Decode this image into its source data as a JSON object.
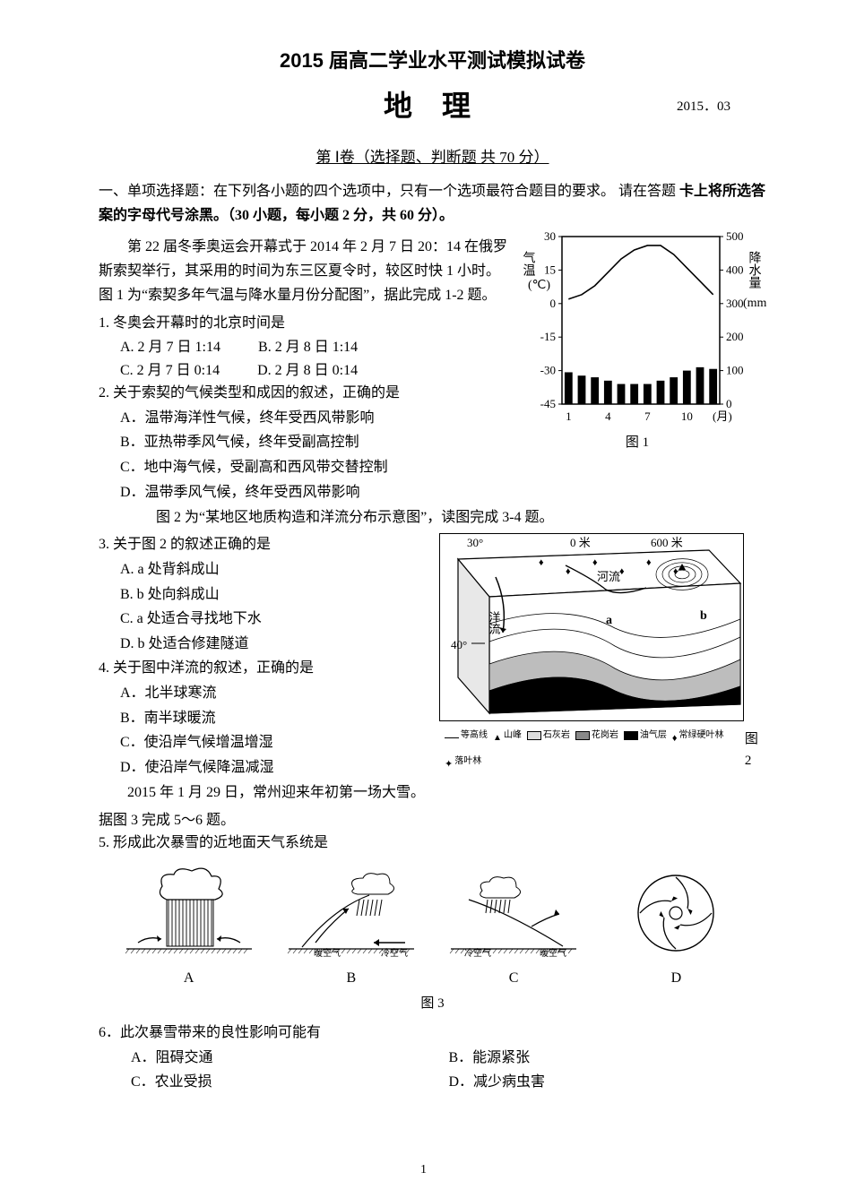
{
  "title_main": "2015 届高二学业水平测试模拟试卷",
  "title_subject": "地 理",
  "title_date": "2015．03",
  "section_header": "第 Ⅰ卷（选择题、判断题  共 70 分）",
  "instruct_line1": "一、单项选择题：在下列各小题的四个选项中，只有一个选项最符合题目的要求。 请在答题",
  "instruct_line2": "卡上将所选答案的字母代号涂黑。（30 小题，每小题 2 分，共 60 分）。",
  "passage1": "第 22 届冬季奥运会开幕式于 2014 年 2 月 7 日 20：14 在俄罗斯索契举行，其采用的时间为东三区夏令时，较区时快 1 小时。图 1 为“索契多年气温与降水量月份分配图”，据此完成 1-2 题。",
  "q1": {
    "stem": "1. 冬奥会开幕时的北京时间是",
    "A": "A. 2 月 7 日 1:14",
    "B": "B. 2 月 8 日 1:14",
    "C": "C. 2 月 7 日 0:14",
    "D": "D. 2 月 8 日 0:14"
  },
  "q2": {
    "stem": "2. 关于索契的气候类型和成因的叙述，正确的是",
    "A": "A．温带海洋性气候，终年受西风带影响",
    "B": "B．亚热带季风气候，终年受副高控制",
    "C": "C．地中海气候，受副高和西风带交替控制",
    "D": "D．温带季风气候，终年受西风带影响"
  },
  "passage2": "图 2 为“某地区地质构造和洋流分布示意图”，读图完成 3-4 题。",
  "q3": {
    "stem": "3. 关于图 2 的叙述正确的是",
    "A": "A. a 处背斜成山",
    "B": "B. b 处向斜成山",
    "C": "C. a 处适合寻找地下水",
    "D": "D. b 处适合修建隧道"
  },
  "q4": {
    "stem": "4. 关于图中洋流的叙述，正确的是",
    "A": "A．北半球寒流",
    "B": "B．南半球暖流",
    "C": "C．使沿岸气候增温增湿",
    "D": "D．使沿岸气候降温减湿"
  },
  "passage3a": "2015 年 1 月 29 日，常州迎来年初第一场大雪。",
  "passage3b": "据图 3 完成 5～6 题。",
  "q5": {
    "stem": "5. 形成此次暴雪的近地面天气系统是"
  },
  "q6": {
    "stem": "6．此次暴雪带来的良性影响可能有",
    "A": "A．阻碍交通",
    "B": "B．能源紧张",
    "C": "C．农业受损",
    "D": "D．减少病虫害"
  },
  "fig1": {
    "caption": "图 1",
    "left_axis_label": "气温(℃)",
    "right_axis_label": "降水量(mm)",
    "x_label": "(月)",
    "temp_ticks": [
      30,
      15,
      0,
      -15,
      -30,
      -45
    ],
    "precip_ticks": [
      500,
      400,
      300,
      200,
      100,
      0
    ],
    "x_ticks": [
      1,
      4,
      7,
      10
    ],
    "precip_values": [
      95,
      85,
      80,
      70,
      60,
      60,
      60,
      70,
      80,
      100,
      110,
      105
    ],
    "temp_values": [
      2,
      4,
      8,
      14,
      20,
      24,
      26,
      26,
      22,
      16,
      10,
      4
    ],
    "bar_color": "#000000",
    "line_color": "#000000",
    "xlim": [
      0.5,
      12.5
    ],
    "temp_ylim": [
      -45,
      30
    ],
    "precip_ylim": [
      0,
      500
    ],
    "background": "#ffffff",
    "axis_color": "#000000",
    "tick_fontsize": 13
  },
  "fig2": {
    "caption": "图 2",
    "lat_labels": [
      "30°",
      "40°"
    ],
    "depth_labels": [
      "0 米",
      "600 米"
    ],
    "features": [
      "洋流",
      "河流",
      "a",
      "b"
    ],
    "legend": [
      {
        "name": "等高线",
        "swatch": "line"
      },
      {
        "name": "山峰",
        "swatch": "triangle"
      },
      {
        "name": "石灰岩",
        "swatch": "#dcdcdc"
      },
      {
        "name": "花岗岩",
        "swatch": "#888888"
      },
      {
        "name": "油气层",
        "swatch": "#000000"
      },
      {
        "name": "常绿硬叶林",
        "swatch": "sym1"
      },
      {
        "name": "落叶林",
        "swatch": "sym2"
      }
    ],
    "colors": {
      "sky": "#ffffff",
      "strata1": "#ffffff",
      "strata2": "#bdbdbd",
      "strata3": "#000000",
      "border": "#000000"
    }
  },
  "fig3": {
    "caption": "图 3",
    "labels": {
      "A": "A",
      "B": "B",
      "C": "C",
      "D": "D"
    },
    "text_warm": "暖空气",
    "text_cold": "冷空气"
  },
  "page_num": "1"
}
